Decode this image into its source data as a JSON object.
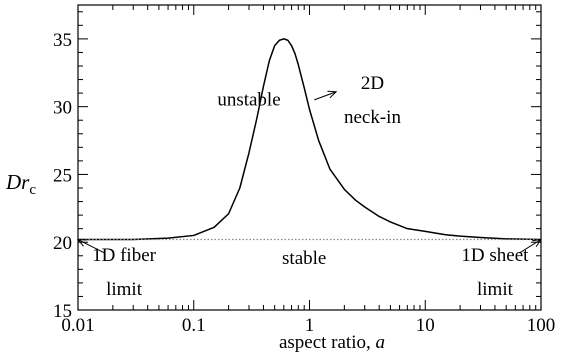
{
  "chart_data": {
    "type": "line",
    "title": "",
    "xlabel_text": "aspect ratio, ",
    "xlabel_var": "a",
    "ylabel_main": "Dr",
    "ylabel_sub": "c",
    "xscale": "log",
    "xlim": [
      0.01,
      100
    ],
    "ylim": [
      15,
      37.5
    ],
    "grid": false,
    "x_ticks": [
      {
        "value": 0.01,
        "label": "0.01"
      },
      {
        "value": 0.1,
        "label": "0.1"
      },
      {
        "value": 1,
        "label": "1"
      },
      {
        "value": 10,
        "label": "10"
      },
      {
        "value": 100,
        "label": "100"
      }
    ],
    "y_ticks": [
      {
        "value": 15,
        "label": "15"
      },
      {
        "value": 20,
        "label": "20"
      },
      {
        "value": 25,
        "label": "25"
      },
      {
        "value": 30,
        "label": "30"
      },
      {
        "value": 35,
        "label": "35"
      }
    ],
    "series": [
      {
        "style": "solid",
        "color": "#000000",
        "x": [
          0.01,
          0.03,
          0.06,
          0.1,
          0.15,
          0.2,
          0.25,
          0.3,
          0.35,
          0.4,
          0.45,
          0.5,
          0.55,
          0.6,
          0.65,
          0.7,
          0.75,
          0.8,
          0.9,
          1.0,
          1.2,
          1.5,
          2,
          2.5,
          3,
          4,
          5,
          7,
          10,
          15,
          20,
          30,
          50,
          100
        ],
        "y": [
          20.2,
          20.2,
          20.3,
          20.5,
          21.1,
          22.1,
          24.0,
          26.6,
          29.1,
          31.5,
          33.4,
          34.5,
          34.9,
          35.0,
          34.9,
          34.5,
          33.9,
          33.1,
          31.4,
          29.8,
          27.5,
          25.4,
          23.9,
          23.1,
          22.6,
          21.9,
          21.5,
          21.0,
          20.8,
          20.55,
          20.45,
          20.35,
          20.25,
          20.2
        ]
      },
      {
        "style": "dotted",
        "color": "#888888",
        "x": [
          0.01,
          100
        ],
        "y": [
          20.2,
          20.2
        ]
      }
    ],
    "annotations": [
      {
        "id": "unstable",
        "text": "unstable",
        "x": 0.3,
        "y": 30.1
      },
      {
        "id": "stable",
        "text": "stable",
        "x": 0.9,
        "y": 18.4
      },
      {
        "id": "neck-in-1",
        "text": "2D",
        "x": 3.5,
        "y": 31.3
      },
      {
        "id": "neck-in-2",
        "text": "neck-in",
        "x": 3.5,
        "y": 28.8
      },
      {
        "id": "fiber-1",
        "text": "1D fiber",
        "x": 0.025,
        "y": 18.6
      },
      {
        "id": "fiber-2",
        "text": "limit",
        "x": 0.025,
        "y": 16.1
      },
      {
        "id": "sheet-1",
        "text": "1D sheet",
        "x": 40,
        "y": 18.6
      },
      {
        "id": "sheet-2",
        "text": "limit",
        "x": 40,
        "y": 16.1
      }
    ],
    "arrows": [
      {
        "id": "arrow-neck-in",
        "from": [
          1.1,
          30.5
        ],
        "to": [
          1.7,
          31.1
        ]
      },
      {
        "id": "arrow-fiber-limit",
        "from": [
          0.017,
          19.2
        ],
        "to": [
          0.01,
          20.2
        ]
      },
      {
        "id": "arrow-sheet-limit",
        "from": [
          65,
          19.2
        ],
        "to": [
          100,
          20.2
        ]
      }
    ]
  }
}
